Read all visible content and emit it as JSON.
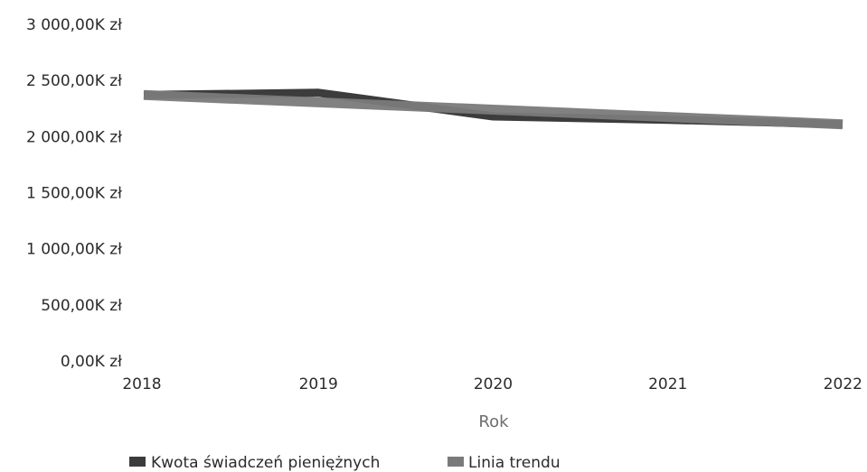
{
  "chart_data": {
    "type": "line",
    "title": "",
    "xlabel": "Rok",
    "ylabel": "",
    "categories": [
      "2018",
      "2019",
      "2020",
      "2021",
      "2022"
    ],
    "ylim": [
      0,
      3000
    ],
    "yticks": [
      0,
      500,
      1000,
      1500,
      2000,
      2500,
      3000
    ],
    "ytick_labels": [
      "0,00K zł",
      "500,00K zł",
      "1 000,00K zł",
      "1 500,00K zł",
      "2 000,00K zł",
      "2 500,00K zł",
      "3 000,00K zł"
    ],
    "grid": false,
    "legend_position": "bottom-left",
    "series": [
      {
        "name": "Kwota świadczeń pieniężnych",
        "values": [
          2370,
          2390,
          2180,
          2150,
          2110
        ],
        "color": "#3c3c3c"
      },
      {
        "name": "Linia trendu",
        "values": [
          2370,
          2305,
          2240,
          2175,
          2110
        ],
        "color": "#7a7a7a"
      }
    ]
  }
}
